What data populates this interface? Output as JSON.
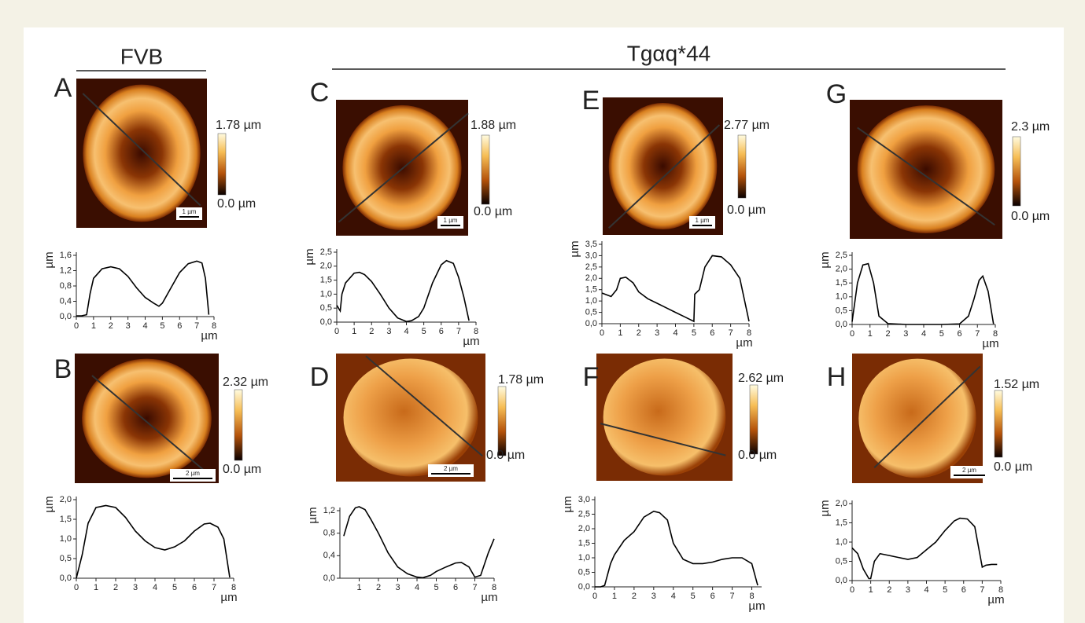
{
  "header": {
    "group_left": "FVB",
    "group_right": "Tgαq*44"
  },
  "chart_data": [
    {
      "type": "line",
      "panel": "A",
      "colorbar_max": "1.78 µm",
      "colorbar_min": "0.0 µm",
      "scale_bar": "1 µm",
      "x_label": "µm",
      "y_label": "µm",
      "color": "#000000",
      "x": [
        0,
        0.3,
        0.6,
        0.8,
        1.0,
        1.5,
        2,
        2.5,
        3,
        3.5,
        4,
        4.5,
        4.8,
        5,
        5.5,
        6,
        6.5,
        7,
        7.3,
        7.5,
        7.7
      ],
      "values": [
        0.02,
        0.02,
        0.05,
        0.6,
        1.0,
        1.25,
        1.3,
        1.25,
        1.05,
        0.75,
        0.5,
        0.35,
        0.27,
        0.35,
        0.75,
        1.15,
        1.38,
        1.45,
        1.4,
        1.0,
        0.05
      ],
      "xlim": [
        0,
        8
      ],
      "xticks": [
        0,
        1,
        2,
        3,
        4,
        5,
        6,
        7,
        8
      ],
      "ylim": [
        0,
        1.6
      ],
      "yticks": [
        {
          "value": 0,
          "label": "0,0"
        },
        {
          "value": 0.4,
          "label": "0,4"
        },
        {
          "value": 0.8,
          "label": "0,8"
        },
        {
          "value": 1.2,
          "label": "1,2"
        },
        {
          "value": 1.6,
          "label": "1,6"
        }
      ]
    },
    {
      "type": "line",
      "panel": "B",
      "colorbar_max": "2.32 µm",
      "colorbar_min": "0.0 µm",
      "scale_bar": "2 µm",
      "x_label": "µm",
      "y_label": "µm",
      "color": "#000000",
      "x": [
        0,
        0.3,
        0.6,
        1,
        1.5,
        2,
        2.5,
        3,
        3.5,
        4,
        4.5,
        5,
        5.5,
        6,
        6.5,
        6.8,
        7.2,
        7.5,
        7.8
      ],
      "values": [
        0,
        0.6,
        1.4,
        1.8,
        1.85,
        1.8,
        1.55,
        1.2,
        0.95,
        0.78,
        0.72,
        0.8,
        0.95,
        1.2,
        1.38,
        1.4,
        1.3,
        1.0,
        0.02
      ],
      "xlim": [
        0,
        8
      ],
      "xticks": [
        0,
        1,
        2,
        3,
        4,
        5,
        6,
        7,
        8
      ],
      "ylim": [
        0,
        2
      ],
      "yticks": [
        {
          "value": 0,
          "label": "0,0"
        },
        {
          "value": 0.5,
          "label": "0,5"
        },
        {
          "value": 1,
          "label": "1,0"
        },
        {
          "value": 1.5,
          "label": "1,5"
        },
        {
          "value": 2,
          "label": "2,0"
        }
      ]
    },
    {
      "type": "line",
      "panel": "C",
      "colorbar_max": "1.88 µm",
      "colorbar_min": "0.0 µm",
      "scale_bar": "1 µm",
      "x_label": "µm",
      "y_label": "µm",
      "color": "#000000",
      "x": [
        0,
        0.2,
        0.3,
        0.5,
        1,
        1.3,
        1.6,
        2,
        2.5,
        3,
        3.5,
        4,
        4.3,
        4.7,
        5,
        5.5,
        6,
        6.3,
        6.7,
        7,
        7.3,
        7.6
      ],
      "values": [
        0.6,
        0.4,
        1.0,
        1.4,
        1.75,
        1.78,
        1.7,
        1.45,
        1.0,
        0.5,
        0.15,
        0.02,
        0.05,
        0.2,
        0.5,
        1.4,
        2.05,
        2.2,
        2.1,
        1.6,
        0.9,
        0.05
      ],
      "xlim": [
        0,
        8
      ],
      "xticks": [
        0,
        1,
        2,
        3,
        4,
        5,
        6,
        7,
        8
      ],
      "ylim": [
        0,
        2.5
      ],
      "yticks": [
        {
          "value": 0,
          "label": "0,0"
        },
        {
          "value": 0.5,
          "label": "0,5"
        },
        {
          "value": 1,
          "label": "1,0"
        },
        {
          "value": 1.5,
          "label": "1,5"
        },
        {
          "value": 2,
          "label": "2,0"
        },
        {
          "value": 2.5,
          "label": "2,5"
        }
      ]
    },
    {
      "type": "line",
      "panel": "D",
      "colorbar_max": "1.78 µm",
      "colorbar_min": "0.0 µm",
      "scale_bar": "2 µm",
      "x_label": "µm",
      "y_label": "µm",
      "color": "#000000",
      "x": [
        0.2,
        0.5,
        0.8,
        1,
        1.3,
        1.6,
        2,
        2.5,
        3,
        3.5,
        4,
        4.3,
        4.7,
        5,
        5.5,
        6,
        6.3,
        6.7,
        7,
        7.3,
        7.7,
        8
      ],
      "values": [
        0.75,
        1.1,
        1.25,
        1.27,
        1.22,
        1.05,
        0.8,
        0.45,
        0.2,
        0.08,
        0.02,
        0.01,
        0.05,
        0.12,
        0.2,
        0.27,
        0.28,
        0.2,
        0.02,
        0.05,
        0.45,
        0.7
      ],
      "xlim": [
        0,
        8
      ],
      "xticks": [
        1,
        2,
        3,
        4,
        5,
        6,
        7,
        8
      ],
      "ylim": [
        0,
        1.2
      ],
      "yticks": [
        {
          "value": 0,
          "label": "0,0"
        },
        {
          "value": 0.4,
          "label": "0,4"
        },
        {
          "value": 0.8,
          "label": "0,8"
        },
        {
          "value": 1.2,
          "label": "1,2"
        }
      ]
    },
    {
      "type": "line",
      "panel": "E",
      "colorbar_max": "2.77 µm",
      "colorbar_min": "0.0 µm",
      "scale_bar": "1 µm",
      "x_label": "µm",
      "y_label": "µm",
      "color": "#000000",
      "x": [
        0,
        0.5,
        0.8,
        1,
        1.3,
        1.7,
        2,
        2.5,
        3,
        3.5,
        4,
        4.5,
        5,
        5.05,
        5.3,
        5.6,
        6,
        6.5,
        7,
        7.5,
        8
      ],
      "values": [
        1.35,
        1.2,
        1.5,
        2.0,
        2.05,
        1.8,
        1.4,
        1.1,
        0.9,
        0.7,
        0.5,
        0.3,
        0.1,
        1.3,
        1.5,
        2.5,
        3.0,
        2.95,
        2.6,
        2.0,
        0.1
      ],
      "xlim": [
        0,
        8
      ],
      "xticks": [
        0,
        1,
        2,
        3,
        4,
        5,
        6,
        7,
        8
      ],
      "ylim": [
        0,
        3.5
      ],
      "yticks": [
        {
          "value": 0,
          "label": "0,0"
        },
        {
          "value": 0.5,
          "label": "0,5"
        },
        {
          "value": 1,
          "label": "1,0"
        },
        {
          "value": 1.5,
          "label": "1,5"
        },
        {
          "value": 2,
          "label": "2,0"
        },
        {
          "value": 2.5,
          "label": "2,5"
        },
        {
          "value": 3,
          "label": "3,0"
        },
        {
          "value": 3.5,
          "label": "3,5"
        }
      ]
    },
    {
      "type": "line",
      "panel": "F",
      "colorbar_max": "2.62 µm",
      "colorbar_min": "0.0 µm",
      "x_label": "µm",
      "y_label": "µm",
      "color": "#000000",
      "x": [
        0,
        0.3,
        0.5,
        0.8,
        1,
        1.5,
        2,
        2.5,
        3,
        3.3,
        3.7,
        4,
        4.5,
        5,
        5.5,
        6,
        6.5,
        7,
        7.5,
        8,
        8.3
      ],
      "values": [
        0,
        0,
        0.05,
        0.8,
        1.1,
        1.6,
        1.9,
        2.4,
        2.6,
        2.55,
        2.3,
        1.5,
        0.95,
        0.8,
        0.8,
        0.85,
        0.95,
        1.0,
        1.0,
        0.8,
        0.05
      ],
      "xlim": [
        0,
        8.5
      ],
      "xticks": [
        0,
        1,
        2,
        3,
        4,
        5,
        6,
        7,
        8
      ],
      "ylim": [
        0,
        3
      ],
      "yticks": [
        {
          "value": 0,
          "label": "0,0"
        },
        {
          "value": 0.5,
          "label": "0,5"
        },
        {
          "value": 1,
          "label": "1,0"
        },
        {
          "value": 1.5,
          "label": "1,5"
        },
        {
          "value": 2,
          "label": "2,0"
        },
        {
          "value": 2.5,
          "label": "2,5"
        },
        {
          "value": 3,
          "label": "3,0"
        }
      ]
    },
    {
      "type": "line",
      "panel": "G",
      "colorbar_max": "2.3 µm",
      "colorbar_min": "0.0 µm",
      "x_label": "µm",
      "y_label": "µm",
      "color": "#000000",
      "x": [
        0,
        0.3,
        0.6,
        0.9,
        1.2,
        1.5,
        2,
        3,
        4,
        5,
        6,
        6.5,
        6.8,
        7.1,
        7.3,
        7.6,
        7.9
      ],
      "values": [
        0.1,
        1.5,
        2.15,
        2.2,
        1.5,
        0.3,
        0.03,
        0,
        0,
        0,
        0.02,
        0.3,
        0.9,
        1.6,
        1.75,
        1.2,
        0.02
      ],
      "xlim": [
        0,
        8
      ],
      "xticks": [
        0,
        1,
        2,
        3,
        4,
        5,
        6,
        7,
        8
      ],
      "ylim": [
        0,
        2.5
      ],
      "yticks": [
        {
          "value": 0,
          "label": "0,0"
        },
        {
          "value": 0.5,
          "label": "0,5"
        },
        {
          "value": 1,
          "label": "1,0"
        },
        {
          "value": 1.5,
          "label": "1,5"
        },
        {
          "value": 2,
          "label": "2,0"
        },
        {
          "value": 2.5,
          "label": "2,5"
        }
      ]
    },
    {
      "type": "line",
      "panel": "H",
      "colorbar_max": "1.52 µm",
      "colorbar_min": "0.0 µm",
      "scale_bar": "2 µm",
      "x_label": "µm",
      "y_label": "µm",
      "color": "#000000",
      "x": [
        0,
        0.3,
        0.6,
        0.9,
        1.0,
        1.2,
        1.5,
        2,
        2.5,
        3,
        3.5,
        4,
        4.5,
        5,
        5.5,
        5.8,
        6.2,
        6.6,
        7,
        7.2,
        7.5,
        7.8
      ],
      "values": [
        0.85,
        0.7,
        0.3,
        0.05,
        0.05,
        0.5,
        0.7,
        0.65,
        0.6,
        0.55,
        0.6,
        0.8,
        1.0,
        1.3,
        1.55,
        1.62,
        1.6,
        1.4,
        0.35,
        0.4,
        0.42,
        0.42
      ],
      "xlim": [
        0,
        8
      ],
      "xticks": [
        0,
        1,
        2,
        3,
        4,
        5,
        6,
        7,
        8
      ],
      "ylim": [
        0,
        2
      ],
      "yticks": [
        {
          "value": 0,
          "label": "0,0"
        },
        {
          "value": 0.5,
          "label": "0,5"
        },
        {
          "value": 1,
          "label": "1,0"
        },
        {
          "value": 1.5,
          "label": "1,5"
        },
        {
          "value": 2,
          "label": "2,0"
        }
      ]
    }
  ]
}
